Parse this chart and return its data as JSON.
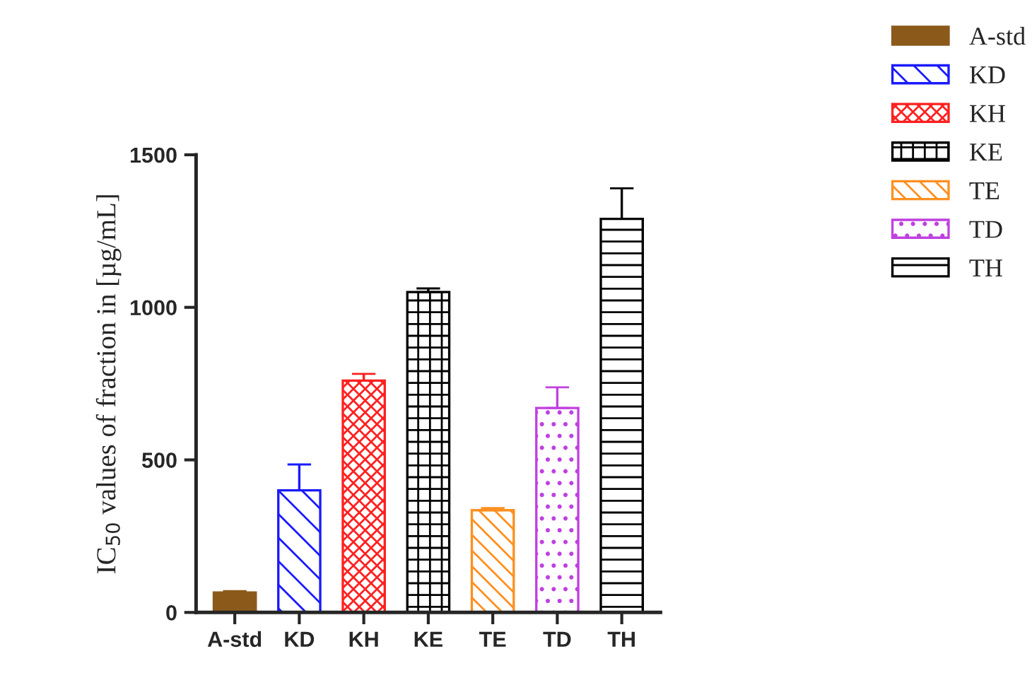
{
  "chart_data": {
    "type": "bar",
    "ylabel": "IC$_{50}$ values of fraction in [µg/mL]",
    "categories": [
      "A-std",
      "KD",
      "KH",
      "KE",
      "TE",
      "TD",
      "TH"
    ],
    "series": [
      {
        "name": "A-std",
        "color": "#8b5a1b",
        "values": [
          65,
          null,
          null,
          null,
          null,
          null,
          null
        ],
        "errors": [
          5,
          null,
          null,
          null,
          null,
          null,
          null
        ]
      },
      {
        "name": "KD",
        "color": "#1a1aff",
        "values": [
          null,
          400,
          null,
          null,
          null,
          null,
          null
        ],
        "errors": [
          null,
          85,
          null,
          null,
          null,
          null,
          null
        ]
      },
      {
        "name": "KH",
        "color": "#ff2020",
        "values": [
          null,
          null,
          760,
          null,
          null,
          null,
          null
        ],
        "errors": [
          null,
          null,
          22,
          null,
          null,
          null,
          null
        ]
      },
      {
        "name": "KE",
        "color": "#000000",
        "values": [
          null,
          null,
          null,
          1050,
          null,
          null,
          null
        ],
        "errors": [
          null,
          null,
          null,
          12,
          null,
          null,
          null
        ]
      },
      {
        "name": "TE",
        "color": "#ff9020",
        "values": [
          null,
          null,
          null,
          null,
          335,
          null,
          null
        ],
        "errors": [
          null,
          null,
          null,
          null,
          7,
          null,
          null
        ]
      },
      {
        "name": "TD",
        "color": "#c040e0",
        "values": [
          null,
          null,
          null,
          null,
          null,
          670,
          null
        ],
        "errors": [
          null,
          null,
          null,
          null,
          null,
          68,
          null
        ]
      },
      {
        "name": "TH",
        "color": "#000000",
        "values": [
          null,
          null,
          null,
          null,
          null,
          null,
          1290
        ],
        "errors": [
          null,
          null,
          null,
          null,
          null,
          null,
          100
        ]
      }
    ],
    "ylim": [
      0,
      1500
    ],
    "yticks": [
      0,
      500,
      1000,
      1500
    ],
    "grid": false,
    "legend": "top right"
  }
}
